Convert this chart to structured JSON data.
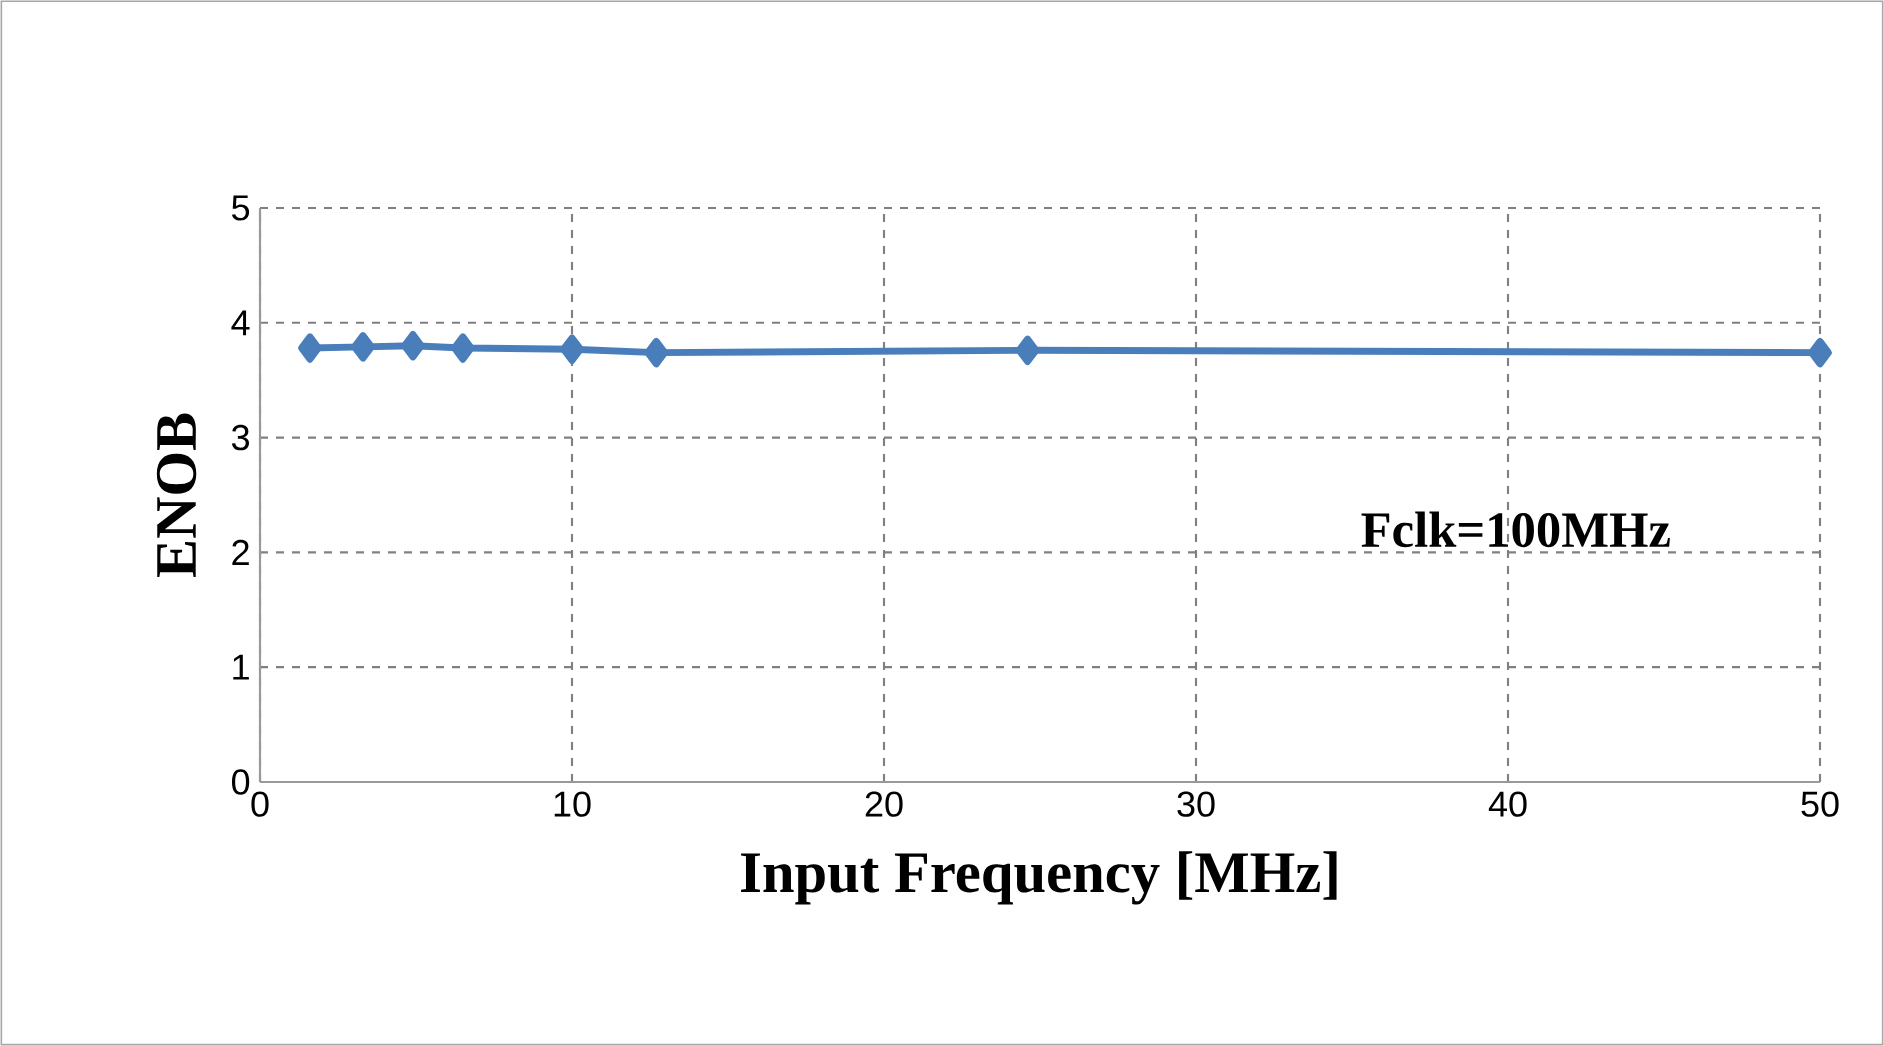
{
  "chart_data": {
    "type": "line",
    "xlabel": "Input Frequency [MHz]",
    "ylabel": "ENOB",
    "x": [
      1.6,
      3.3,
      4.9,
      6.5,
      10,
      12.7,
      24.6,
      50
    ],
    "series": [
      {
        "color": "#4a7ebb",
        "values": [
          3.78,
          3.79,
          3.8,
          3.78,
          3.77,
          3.74,
          3.76,
          3.74
        ]
      }
    ],
    "xlim": [
      0,
      50
    ],
    "ylim": [
      0,
      5
    ],
    "xticks": [
      0,
      10,
      20,
      30,
      40,
      50
    ],
    "yticks": [
      0,
      1,
      2,
      3,
      4,
      5
    ],
    "grid": true,
    "marker": "diamond",
    "line_style": "solid",
    "annotations": [
      "Fclk=100MHz"
    ]
  }
}
